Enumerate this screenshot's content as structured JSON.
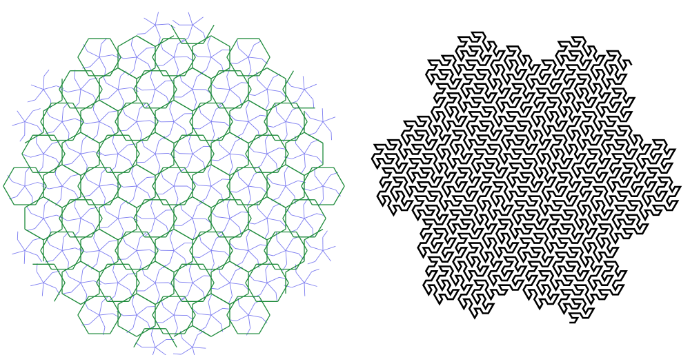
{
  "figures": [
    {
      "name": "penrose-tiling",
      "colors": {
        "outer_edge": "#1d8a3a",
        "inner_edge": "#7b7bf0",
        "background": "#ffffff"
      },
      "symmetry": 5
    },
    {
      "name": "gosper-curve",
      "colors": {
        "stroke": "#000000",
        "background": "#ffffff"
      },
      "order": 4
    }
  ]
}
